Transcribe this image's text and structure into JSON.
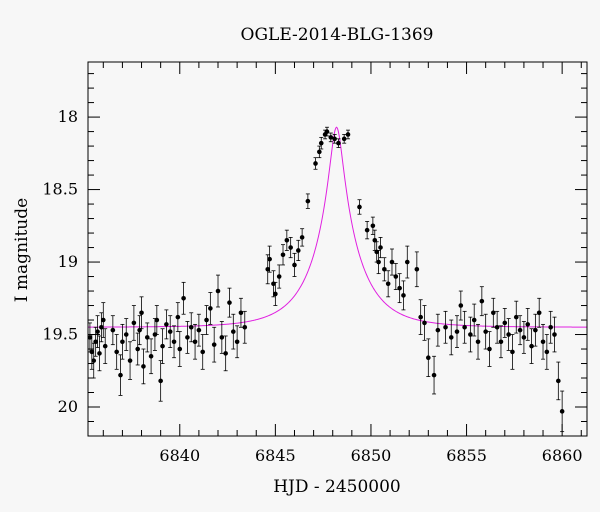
{
  "chart_data": {
    "type": "scatter",
    "title": "OGLE-2014-BLG-1369",
    "xlabel": "HJD - 2450000",
    "ylabel": "I magnitude",
    "xlim": [
      6835.2,
      6861.3
    ],
    "ylim": [
      20.2,
      17.62
    ],
    "y_inverted": true,
    "grid": false,
    "x_major_ticks": [
      6840,
      6845,
      6850,
      6855,
      6860
    ],
    "x_tick_labels": [
      "6840",
      "6845",
      "6850",
      "6855",
      "6860"
    ],
    "y_major_ticks": [
      18,
      18.5,
      19,
      19.5,
      20
    ],
    "y_tick_labels": [
      "18",
      "18.5",
      "19",
      "19.5",
      "20"
    ],
    "model": {
      "color": "#e020e0",
      "t0": 6848.2,
      "u0": 0.138,
      "tE": 2.3,
      "baseline": 19.45,
      "peak": 18.07
    },
    "points": [
      [
        6835.3,
        19.52,
        0.1
      ],
      [
        6835.4,
        19.62,
        0.12
      ],
      [
        6835.5,
        19.68,
        0.12
      ],
      [
        6835.6,
        19.55,
        0.1
      ],
      [
        6835.7,
        19.48,
        0.11
      ],
      [
        6835.8,
        19.63,
        0.12
      ],
      [
        6835.9,
        19.45,
        0.1
      ],
      [
        6836.0,
        19.4,
        0.12
      ],
      [
        6836.1,
        19.58,
        0.12
      ],
      [
        6836.5,
        19.47,
        0.1
      ],
      [
        6836.7,
        19.62,
        0.12
      ],
      [
        6836.9,
        19.78,
        0.14
      ],
      [
        6837.0,
        19.55,
        0.12
      ],
      [
        6837.2,
        19.5,
        0.11
      ],
      [
        6837.4,
        19.68,
        0.13
      ],
      [
        6837.6,
        19.42,
        0.12
      ],
      [
        6837.8,
        19.6,
        0.11
      ],
      [
        6837.9,
        19.47,
        0.1
      ],
      [
        6838.0,
        19.35,
        0.11
      ],
      [
        6838.1,
        19.72,
        0.12
      ],
      [
        6838.3,
        19.52,
        0.1
      ],
      [
        6838.5,
        19.65,
        0.12
      ],
      [
        6838.7,
        19.5,
        0.11
      ],
      [
        6838.8,
        19.4,
        0.1
      ],
      [
        6839.0,
        19.82,
        0.14
      ],
      [
        6839.1,
        19.58,
        0.12
      ],
      [
        6839.3,
        19.43,
        0.1
      ],
      [
        6839.5,
        19.48,
        0.11
      ],
      [
        6839.7,
        19.55,
        0.11
      ],
      [
        6839.9,
        19.38,
        0.1
      ],
      [
        6840.0,
        19.6,
        0.12
      ],
      [
        6840.2,
        19.25,
        0.11
      ],
      [
        6840.4,
        19.52,
        0.11
      ],
      [
        6840.6,
        19.45,
        0.1
      ],
      [
        6840.8,
        19.55,
        0.12
      ],
      [
        6841.0,
        19.47,
        0.11
      ],
      [
        6841.2,
        19.62,
        0.12
      ],
      [
        6841.4,
        19.4,
        0.1
      ],
      [
        6841.6,
        19.32,
        0.11
      ],
      [
        6841.8,
        19.57,
        0.12
      ],
      [
        6842.0,
        19.2,
        0.11
      ],
      [
        6842.2,
        19.52,
        0.11
      ],
      [
        6842.4,
        19.63,
        0.12
      ],
      [
        6842.6,
        19.28,
        0.1
      ],
      [
        6842.8,
        19.48,
        0.12
      ],
      [
        6843.0,
        19.55,
        0.11
      ],
      [
        6843.2,
        19.35,
        0.1
      ],
      [
        6843.4,
        19.45,
        0.11
      ],
      [
        6844.6,
        19.05,
        0.1
      ],
      [
        6844.7,
        18.98,
        0.09
      ],
      [
        6844.9,
        19.15,
        0.09
      ],
      [
        6845.0,
        19.22,
        0.08
      ],
      [
        6845.2,
        19.1,
        0.08
      ],
      [
        6845.4,
        18.95,
        0.07
      ],
      [
        6845.6,
        18.85,
        0.07
      ],
      [
        6845.8,
        18.9,
        0.07
      ],
      [
        6846.0,
        19.02,
        0.08
      ],
      [
        6846.2,
        18.92,
        0.07
      ],
      [
        6846.4,
        18.83,
        0.06
      ],
      [
        6846.7,
        18.58,
        0.05
      ],
      [
        6847.1,
        18.32,
        0.04
      ],
      [
        6847.3,
        18.24,
        0.04
      ],
      [
        6847.4,
        18.18,
        0.04
      ],
      [
        6847.6,
        18.12,
        0.03
      ],
      [
        6847.7,
        18.1,
        0.03
      ],
      [
        6847.9,
        18.14,
        0.03
      ],
      [
        6848.1,
        18.15,
        0.03
      ],
      [
        6848.3,
        18.18,
        0.03
      ],
      [
        6848.6,
        18.15,
        0.03
      ],
      [
        6848.8,
        18.12,
        0.03
      ],
      [
        6849.4,
        18.62,
        0.05
      ],
      [
        6849.8,
        18.78,
        0.06
      ],
      [
        6850.1,
        18.75,
        0.06
      ],
      [
        6850.2,
        18.85,
        0.07
      ],
      [
        6850.3,
        18.93,
        0.07
      ],
      [
        6850.4,
        19.0,
        0.08
      ],
      [
        6850.5,
        18.9,
        0.07
      ],
      [
        6850.7,
        19.05,
        0.08
      ],
      [
        6850.9,
        19.15,
        0.09
      ],
      [
        6851.1,
        19.0,
        0.09
      ],
      [
        6851.3,
        19.1,
        0.09
      ],
      [
        6851.5,
        19.18,
        0.1
      ],
      [
        6851.7,
        19.23,
        0.1
      ],
      [
        6851.9,
        19.0,
        0.11
      ],
      [
        6852.4,
        19.05,
        0.12
      ],
      [
        6852.6,
        19.38,
        0.12
      ],
      [
        6852.8,
        19.42,
        0.12
      ],
      [
        6853.0,
        19.66,
        0.13
      ],
      [
        6853.3,
        19.78,
        0.13
      ],
      [
        6853.5,
        19.47,
        0.11
      ],
      [
        6853.9,
        19.45,
        0.11
      ],
      [
        6854.2,
        19.52,
        0.12
      ],
      [
        6854.5,
        19.48,
        0.11
      ],
      [
        6854.7,
        19.3,
        0.1
      ],
      [
        6854.9,
        19.45,
        0.11
      ],
      [
        6855.2,
        19.5,
        0.12
      ],
      [
        6855.4,
        19.4,
        0.11
      ],
      [
        6855.6,
        19.55,
        0.12
      ],
      [
        6855.8,
        19.27,
        0.1
      ],
      [
        6856.0,
        19.48,
        0.12
      ],
      [
        6856.2,
        19.6,
        0.12
      ],
      [
        6856.4,
        19.35,
        0.1
      ],
      [
        6856.6,
        19.45,
        0.11
      ],
      [
        6856.8,
        19.55,
        0.11
      ],
      [
        6857.0,
        19.42,
        0.1
      ],
      [
        6857.2,
        19.5,
        0.11
      ],
      [
        6857.4,
        19.62,
        0.12
      ],
      [
        6857.6,
        19.38,
        0.11
      ],
      [
        6857.8,
        19.47,
        0.1
      ],
      [
        6858.0,
        19.52,
        0.11
      ],
      [
        6858.2,
        19.43,
        0.11
      ],
      [
        6858.4,
        19.58,
        0.12
      ],
      [
        6858.6,
        19.47,
        0.11
      ],
      [
        6858.8,
        19.35,
        0.1
      ],
      [
        6859.0,
        19.55,
        0.12
      ],
      [
        6859.2,
        19.62,
        0.12
      ],
      [
        6859.4,
        19.45,
        0.11
      ],
      [
        6859.6,
        19.5,
        0.12
      ],
      [
        6859.8,
        19.82,
        0.13
      ],
      [
        6860.0,
        20.03,
        0.14
      ]
    ]
  }
}
